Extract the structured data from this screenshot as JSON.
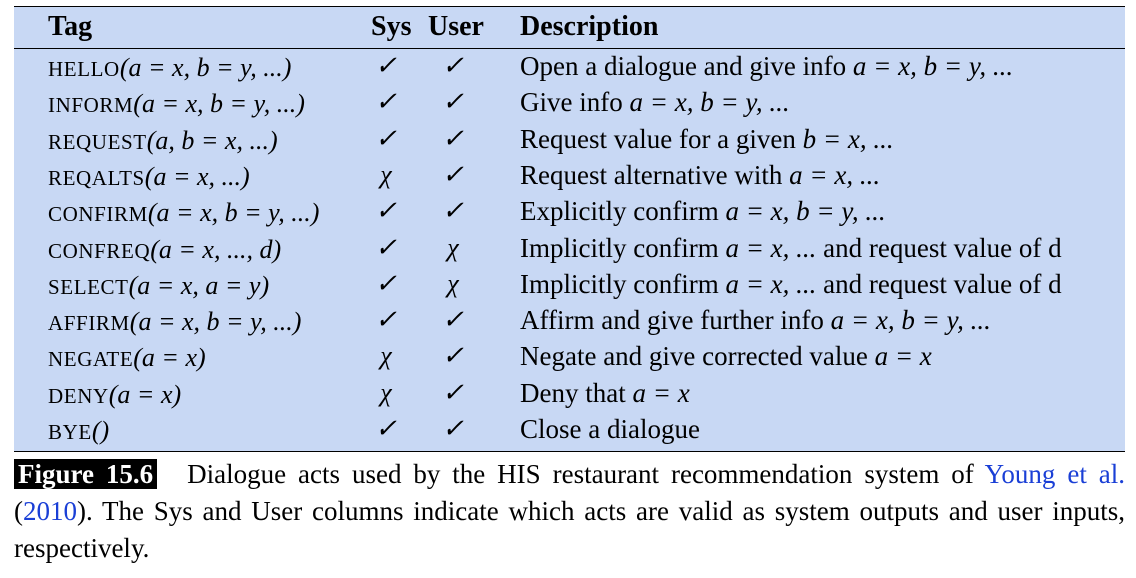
{
  "table": {
    "headers": {
      "tag": "Tag",
      "sys": "Sys",
      "user": "User",
      "description": "Description"
    },
    "rows": [
      {
        "tag_name": "HELLO",
        "tag_args": "(a = x, b = y, ...)",
        "sys": "✓",
        "user": "✓",
        "desc_text": "Open a dialogue and give info ",
        "desc_math": "a = x, b = y, ...",
        "desc_tail": ""
      },
      {
        "tag_name": "INFORM",
        "tag_args": "(a = x, b = y, ...)",
        "sys": "✓",
        "user": "✓",
        "desc_text": "Give info ",
        "desc_math": "a = x, b = y, ...",
        "desc_tail": ""
      },
      {
        "tag_name": "REQUEST",
        "tag_args": "(a, b = x, ...)",
        "sys": "✓",
        "user": "✓",
        "desc_text": "Request value for a given ",
        "desc_math": "b = x, ...",
        "desc_tail": ""
      },
      {
        "tag_name": "REQALTS",
        "tag_args": "(a = x, ...)",
        "sys": "χ",
        "user": "✓",
        "desc_text": "Request alternative with ",
        "desc_math": "a = x, ...",
        "desc_tail": ""
      },
      {
        "tag_name": "CONFIRM",
        "tag_args": "(a = x, b = y, ...)",
        "sys": "✓",
        "user": "✓",
        "desc_text": "Explicitly confirm ",
        "desc_math": "a = x, b = y, ...",
        "desc_tail": ""
      },
      {
        "tag_name": "CONFREQ",
        "tag_args": "(a = x, ..., d)",
        "sys": "✓",
        "user": "χ",
        "desc_text": "Implicitly confirm ",
        "desc_math": "a = x, ...",
        "desc_tail": " and request value of d"
      },
      {
        "tag_name": "SELECT",
        "tag_args": "(a = x, a = y)",
        "sys": "✓",
        "user": "χ",
        "desc_text": "Implicitly confirm ",
        "desc_math": "a = x, ...",
        "desc_tail": " and request value of d"
      },
      {
        "tag_name": "AFFIRM",
        "tag_args": "(a = x, b = y, ...)",
        "sys": "✓",
        "user": "✓",
        "desc_text": "Affirm and give further info ",
        "desc_math": "a = x, b = y, ...",
        "desc_tail": ""
      },
      {
        "tag_name": "NEGATE",
        "tag_args": "(a = x)",
        "sys": "χ",
        "user": "✓",
        "desc_text": "Negate and give corrected value ",
        "desc_math": "a = x",
        "desc_tail": ""
      },
      {
        "tag_name": "DENY",
        "tag_args": "(a = x)",
        "sys": "χ",
        "user": "✓",
        "desc_text": "Deny that ",
        "desc_math": "a = x",
        "desc_tail": ""
      },
      {
        "tag_name": "BYE",
        "tag_args": "()",
        "sys": "✓",
        "user": "✓",
        "desc_text": "Close a dialogue",
        "desc_math": "",
        "desc_tail": ""
      }
    ]
  },
  "caption": {
    "label": "Figure 15.6",
    "text_before": "Dialogue acts used by the HIS restaurant recommendation system of ",
    "cite_authors": "Young et al.",
    "cite_open": " (",
    "cite_year": "2010",
    "text_after": "). The Sys and User columns indicate which acts are valid as system outputs and user inputs, respectively."
  }
}
